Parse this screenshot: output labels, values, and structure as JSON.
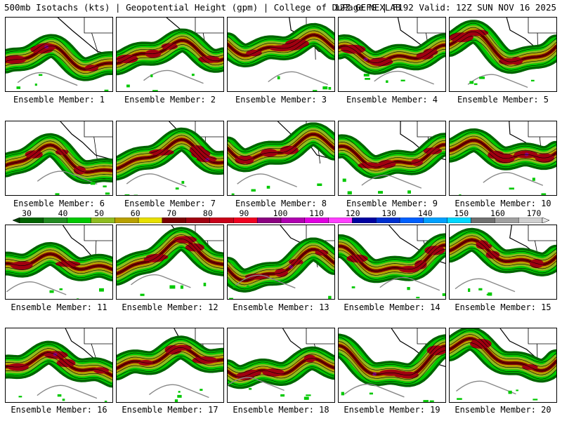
{
  "header": {
    "left": "500mb Isotachs (kts) | Geopotential Height (gpm) | College of DuPage NEXLAB",
    "right": "12Z GEFS | F192 Valid: 12Z SUN NOV 16 2025"
  },
  "colorbar": {
    "labels": [
      "30",
      "40",
      "50",
      "60",
      "70",
      "80",
      "90",
      "100",
      "110",
      "120",
      "130",
      "140",
      "150",
      "160",
      "170"
    ],
    "colors": [
      "#006400",
      "#228B22",
      "#00c800",
      "#8fbc20",
      "#b8a000",
      "#e8e000",
      "#7a0000",
      "#a00010",
      "#c80018",
      "#f00020",
      "#8b0080",
      "#b000b0",
      "#e000e0",
      "#ff40ff",
      "#0000a0",
      "#0030d0",
      "#0060ff",
      "#00a0ff",
      "#00d8ff",
      "#707070",
      "#a0a0a0",
      "#d0d0d0"
    ]
  },
  "members": [
    {
      "label": "Ensemble Member: 1"
    },
    {
      "label": "Ensemble Member: 2"
    },
    {
      "label": "Ensemble Member: 3"
    },
    {
      "label": "Ensemble Member: 4"
    },
    {
      "label": "Ensemble Member: 5"
    },
    {
      "label": "Ensemble Member: 6"
    },
    {
      "label": "Ensemble Member: 7"
    },
    {
      "label": "Ensemble Member: 8"
    },
    {
      "label": "Ensemble Member: 9"
    },
    {
      "label": "Ensemble Member: 10"
    },
    {
      "label": "Ensemble Member: 11"
    },
    {
      "label": "Ensemble Member: 12"
    },
    {
      "label": "Ensemble Member: 13"
    },
    {
      "label": "Ensemble Member: 14"
    },
    {
      "label": "Ensemble Member: 15"
    },
    {
      "label": "Ensemble Member: 16"
    },
    {
      "label": "Ensemble Member: 17"
    },
    {
      "label": "Ensemble Member: 18"
    },
    {
      "label": "Ensemble Member: 19"
    },
    {
      "label": "Ensemble Member: 20"
    }
  ]
}
